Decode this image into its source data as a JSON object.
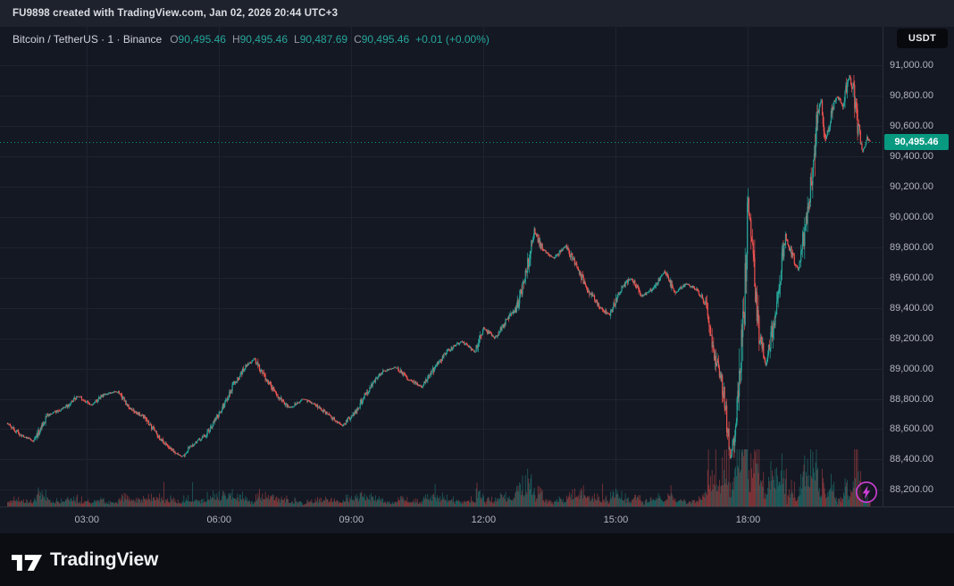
{
  "topbar": {
    "attribution": "FU9898 created with TradingView.com, Jan 02, 2026 20:44 UTC+3"
  },
  "legend": {
    "title": "Bitcoin / TetherUS · 1 · Binance",
    "open_label": "O",
    "open": "90,495.46",
    "high_label": "H",
    "high": "90,495.46",
    "low_label": "L",
    "low": "90,487.69",
    "close_label": "C",
    "close": "90,495.46",
    "change": "+0.01 (+0.00%)"
  },
  "price_axis": {
    "currency": "USDT",
    "last_price_label": "90,495.46"
  },
  "footer": {
    "brand": "TradingView"
  },
  "icons": {
    "lightning": "lightning-bolt-in-circle",
    "logo": "tradingview-17-mark",
    "lightning_color": "#cf3fd6"
  },
  "chart_data": {
    "type": "candlestick",
    "title": "Bitcoin / TetherUS",
    "interval": "1",
    "exchange": "Binance",
    "ohlc": {
      "open": "90,495.46",
      "high": "90,495.46",
      "low": "90,487.69",
      "close": "90,495.46",
      "change": "+0.01 (+0.00%)"
    },
    "last_price": 90495.46,
    "y_range": [
      88090,
      91255
    ],
    "x_range_hours": [
      1.03,
      21.05
    ],
    "grid": true,
    "y_ticks": [
      {
        "v": 91000,
        "label": "91,000.00"
      },
      {
        "v": 90800,
        "label": "90,800.00"
      },
      {
        "v": 90600,
        "label": "90,600.00"
      },
      {
        "v": 90400,
        "label": "90,400.00"
      },
      {
        "v": 90200,
        "label": "90,200.00"
      },
      {
        "v": 90000,
        "label": "90,000.00"
      },
      {
        "v": 89800,
        "label": "89,800.00"
      },
      {
        "v": 89600,
        "label": "89,600.00"
      },
      {
        "v": 89400,
        "label": "89,400.00"
      },
      {
        "v": 89200,
        "label": "89,200.00"
      },
      {
        "v": 89000,
        "label": "89,000.00"
      },
      {
        "v": 88800,
        "label": "88,800.00"
      },
      {
        "v": 88600,
        "label": "88,600.00"
      },
      {
        "v": 88400,
        "label": "88,400.00"
      },
      {
        "v": 88200,
        "label": "88,200.00"
      }
    ],
    "x_ticks": [
      {
        "t": 3,
        "label": "03:00"
      },
      {
        "t": 6,
        "label": "06:00"
      },
      {
        "t": 9,
        "label": "09:00"
      },
      {
        "t": 12,
        "label": "12:00"
      },
      {
        "t": 15,
        "label": "15:00"
      },
      {
        "t": 18,
        "label": "18:00"
      }
    ],
    "seed": 1337,
    "candles_per_hour": 60,
    "anchors": [
      [
        1.2,
        88640
      ],
      [
        1.5,
        88560
      ],
      [
        1.8,
        88520
      ],
      [
        2.1,
        88690
      ],
      [
        2.5,
        88740
      ],
      [
        2.8,
        88820
      ],
      [
        3.1,
        88760
      ],
      [
        3.4,
        88830
      ],
      [
        3.7,
        88850
      ],
      [
        4.0,
        88730
      ],
      [
        4.3,
        88680
      ],
      [
        4.6,
        88560
      ],
      [
        4.9,
        88470
      ],
      [
        5.15,
        88420
      ],
      [
        5.4,
        88500
      ],
      [
        5.7,
        88560
      ],
      [
        6.0,
        88700
      ],
      [
        6.3,
        88880
      ],
      [
        6.6,
        89020
      ],
      [
        6.8,
        89060
      ],
      [
        7.0,
        88960
      ],
      [
        7.3,
        88830
      ],
      [
        7.6,
        88740
      ],
      [
        7.9,
        88800
      ],
      [
        8.2,
        88760
      ],
      [
        8.5,
        88690
      ],
      [
        8.8,
        88620
      ],
      [
        9.1,
        88720
      ],
      [
        9.4,
        88870
      ],
      [
        9.7,
        88980
      ],
      [
        10.0,
        89010
      ],
      [
        10.3,
        88930
      ],
      [
        10.6,
        88880
      ],
      [
        10.9,
        89010
      ],
      [
        11.2,
        89120
      ],
      [
        11.5,
        89180
      ],
      [
        11.8,
        89110
      ],
      [
        12.0,
        89270
      ],
      [
        12.25,
        89200
      ],
      [
        12.5,
        89310
      ],
      [
        12.75,
        89400
      ],
      [
        13.0,
        89680
      ],
      [
        13.15,
        89910
      ],
      [
        13.35,
        89780
      ],
      [
        13.6,
        89730
      ],
      [
        13.85,
        89810
      ],
      [
        14.1,
        89680
      ],
      [
        14.35,
        89530
      ],
      [
        14.6,
        89420
      ],
      [
        14.85,
        89350
      ],
      [
        15.1,
        89520
      ],
      [
        15.35,
        89600
      ],
      [
        15.6,
        89480
      ],
      [
        15.85,
        89530
      ],
      [
        16.1,
        89640
      ],
      [
        16.35,
        89500
      ],
      [
        16.6,
        89560
      ],
      [
        16.85,
        89520
      ],
      [
        17.05,
        89420
      ],
      [
        17.25,
        89070
      ],
      [
        17.45,
        88850
      ],
      [
        17.6,
        88400
      ],
      [
        17.75,
        88700
      ],
      [
        17.9,
        89300
      ],
      [
        18.0,
        90120
      ],
      [
        18.1,
        89750
      ],
      [
        18.25,
        89250
      ],
      [
        18.4,
        89020
      ],
      [
        18.55,
        89250
      ],
      [
        18.7,
        89550
      ],
      [
        18.85,
        89870
      ],
      [
        19.0,
        89750
      ],
      [
        19.15,
        89640
      ],
      [
        19.3,
        89950
      ],
      [
        19.45,
        90250
      ],
      [
        19.55,
        90600
      ],
      [
        19.65,
        90780
      ],
      [
        19.75,
        90500
      ],
      [
        19.85,
        90620
      ],
      [
        20.0,
        90800
      ],
      [
        20.15,
        90740
      ],
      [
        20.3,
        90930
      ],
      [
        20.4,
        90820
      ],
      [
        20.5,
        90580
      ],
      [
        20.6,
        90430
      ],
      [
        20.7,
        90520
      ],
      [
        20.77,
        90495
      ]
    ],
    "colors": {
      "bg": "#141823",
      "grid": "#1e2330",
      "up": "#26a69a",
      "down": "#ef5350",
      "vol_up": "rgba(38,166,154,0.5)",
      "vol_down": "rgba(239,83,80,0.5)",
      "label_bg": "#089981"
    }
  }
}
